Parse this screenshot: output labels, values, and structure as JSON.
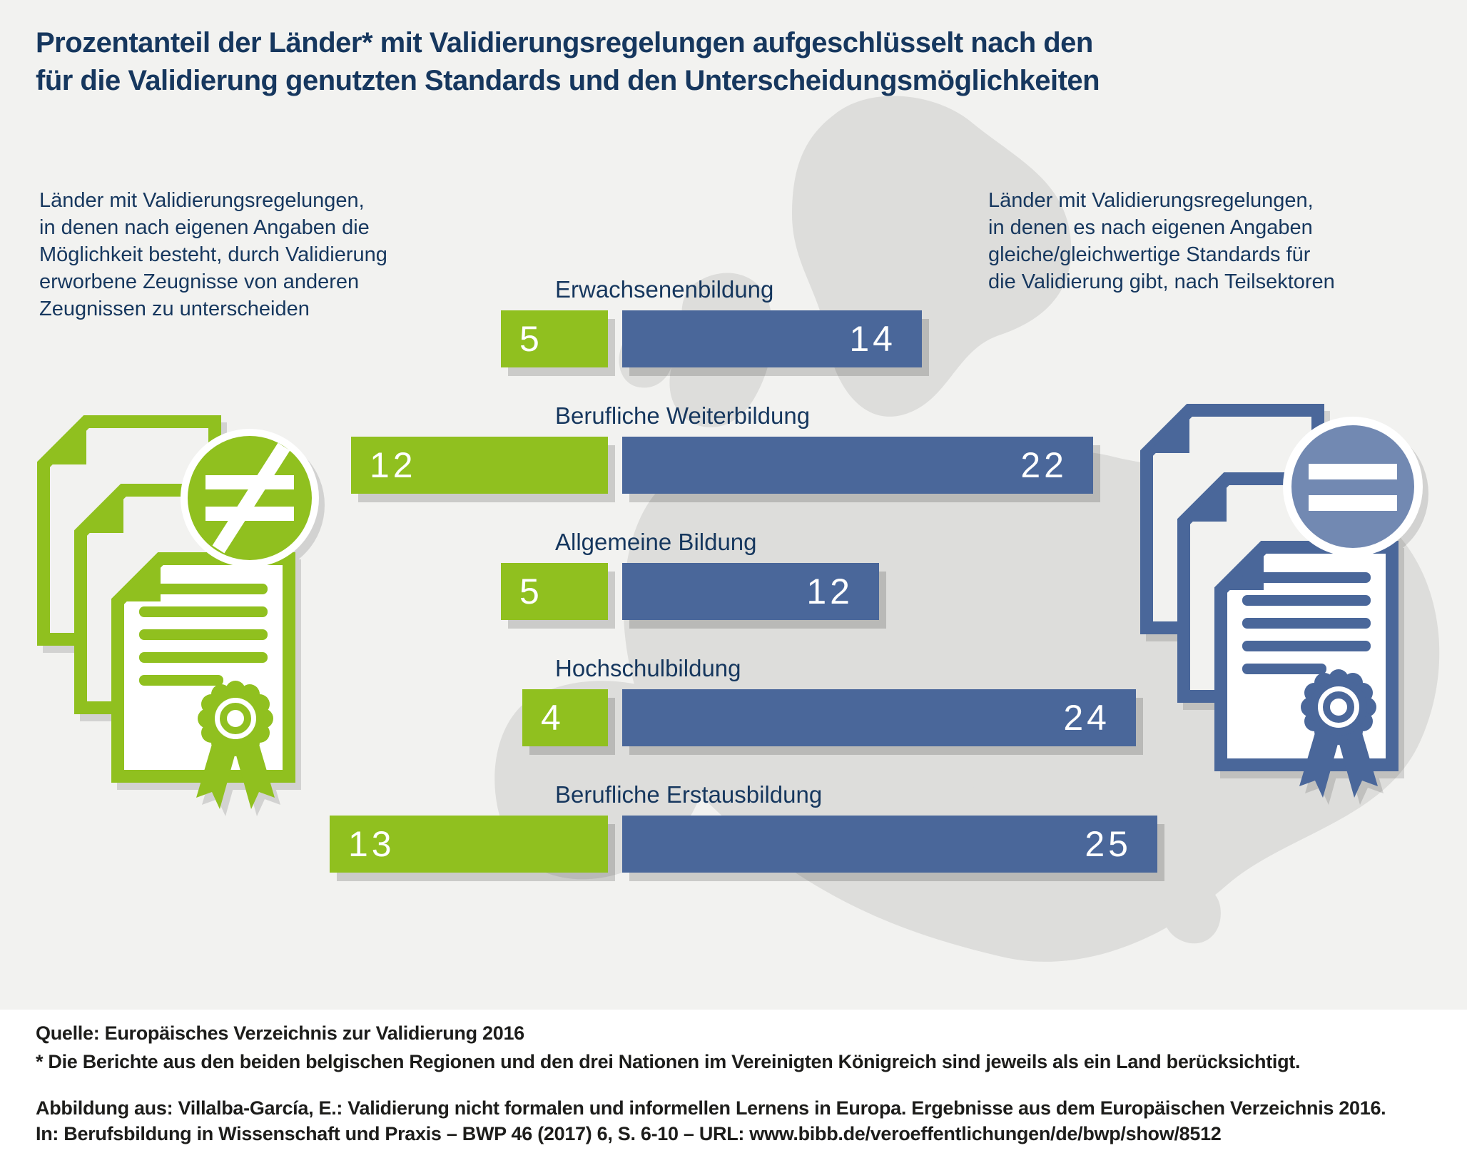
{
  "title": {
    "text": "Prozentanteil der Länder* mit Validierungsregelungen aufgeschlüsselt nach den\nfür die Validierung genutzten Standards und den Unterscheidungsmöglichkeiten"
  },
  "notes": {
    "left": "Länder mit Validierungsregelungen,\nin denen nach eigenen Angaben die\nMöglichkeit besteht, durch Validierung\nerworbene Zeugnisse von anderen\nZeugnissen zu unterscheiden",
    "right": "Länder mit Validierungsregelungen,\nin denen es nach eigenen Angaben\ngleiche/gleichwertige Standards für\ndie Validierung gibt, nach Teilsektoren"
  },
  "chart_data": {
    "type": "bar",
    "orientation": "diverging-horizontal",
    "categories": [
      "Erwachsenenbildung",
      "Berufliche Weiterbildung",
      "Allgemeine Bildung",
      "Hochschulbildung",
      "Berufliche Erstausbildung"
    ],
    "series": [
      {
        "name": "Länder mit Unterscheidungsmöglichkeit durch Validierung erworbener Zeugnisse",
        "side": "left",
        "color": "#90c01f",
        "values": [
          5,
          12,
          5,
          4,
          13
        ]
      },
      {
        "name": "Länder mit gleichen/gleichwertigen Standards für die Validierung",
        "side": "right",
        "color": "#4a679a",
        "values": [
          14,
          22,
          12,
          24,
          25
        ]
      }
    ],
    "value_labels_shown": true,
    "xlim": [
      0,
      25
    ],
    "axis_gridlines": false,
    "legend_position": "as-side-notes"
  },
  "icons": {
    "left_icon": "certificates-not-equal-icon",
    "right_icon": "certificates-equal-icon"
  },
  "footer": {
    "source": "Quelle: Europäisches Verzeichnis zur Validierung 2016",
    "asterisk_note": "* Die Berichte aus den beiden belgischen Regionen und den drei Nationen im Vereinigten Königreich sind jeweils als ein Land berücksichtigt.",
    "attribution": "Abbildung aus: Villalba-García, E.: Validierung nicht formalen und informellen Lernens in Europa. Ergebnisse aus dem Europäischen Verzeichnis 2016.\nIn: Berufsbildung in Wissenschaft und Praxis – BWP 46 (2017) 6, S. 6-10 – URL: www.bibb.de/veroeffentlichungen/de/bwp/show/8512"
  },
  "colors": {
    "background": "#f2f2f0",
    "map": "#dddddb",
    "navy_text": "#16375e",
    "green": "#90c01f",
    "blue": "#4a679a",
    "badge_blue": "#7289b2",
    "footer_bg": "#ffffff",
    "footer_text": "#1d1d1b"
  }
}
